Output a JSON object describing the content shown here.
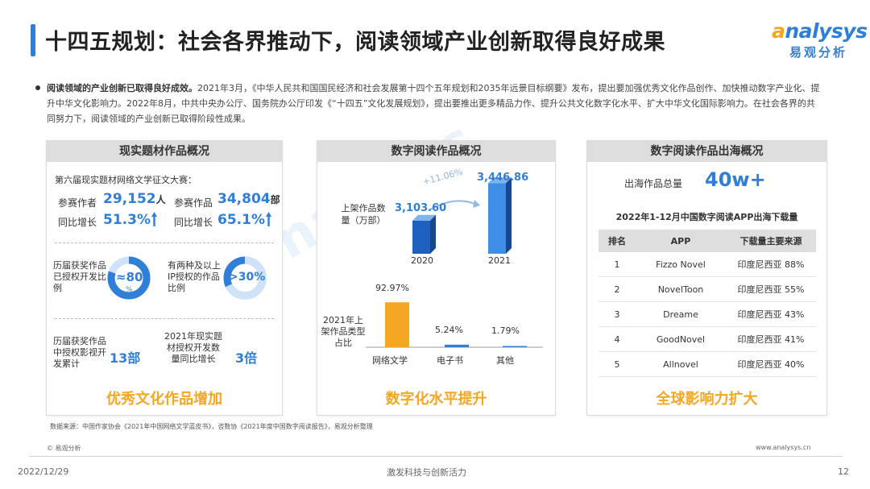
{
  "header": {
    "title": "十四五规划：社会各界推动下，阅读领域产业创新取得良好成果",
    "logo_en_prefix": "nalysys",
    "logo_cn": "易观分析"
  },
  "intro": {
    "lead": "阅读领域的产业创新已取得良好成效。",
    "body": "2021年3月，《中华人民共和国国民经济和社会发展第十四个五年规划和2035年远景目标纲要》发布，提出要加强优秀文化作品创作、加快推动数字产业化、提升中华文化影响力。2022年8月，中共中央办公厅、国务院办公厅印发《“十四五”文化发展规划》，提出要推出更多精品力作、提升公共文化数字化水平、扩大中华文化国际影响力。在社会各界的共同努力下，阅读领域的产业创新已取得阶段性成果。"
  },
  "panel1": {
    "header": "现实题材作品概况",
    "contest": "第六届现实题材网络文学征文大赛：",
    "authors_label": "参赛作者",
    "authors_value": "29,152",
    "authors_unit": "人",
    "works_label": "参赛作品",
    "works_value": "34,804",
    "works_unit": "部",
    "yoy_label_1": "同比增长",
    "yoy_value_1": "51.3%",
    "yoy_label_2": "同比增长",
    "yoy_value_2": "65.1%",
    "ring1_label": "历届获奖作品已授权开发比例",
    "ring1_value": "≈80",
    "ring1_unit": "%",
    "ring1_fraction": 0.8,
    "ring2_label": "有两种及以上IP授权的作品比例",
    "ring2_value": ">30%",
    "ring2_fraction": 0.32,
    "stat1_label": "历届获奖作品中授权影视开发累计",
    "stat1_value": "13部",
    "stat2_label": "2021年现实题材授权开发数量同比增长",
    "stat2_value": "3倍",
    "footer": "优秀文化作品增加"
  },
  "panel2": {
    "header": "数字阅读作品概况",
    "y_label": "上架作品数量（万部）",
    "growth": "+11.06%",
    "bars": [
      {
        "year": "2020",
        "value": 3103.6,
        "label": "3,103.60"
      },
      {
        "year": "2021",
        "value": 3446.86,
        "label": "3,446.86"
      }
    ],
    "share_label": "2021年上架作品类型占比",
    "shares": [
      {
        "name": "网络文学",
        "pct": "92.97%",
        "value": 92.97
      },
      {
        "name": "电子书",
        "pct": "5.24%",
        "value": 5.24
      },
      {
        "name": "其他",
        "pct": "1.79%",
        "value": 1.79
      }
    ],
    "footer": "数字化水平提升"
  },
  "panel3": {
    "header": "数字阅读作品出海概况",
    "total_label": "出海作品总量",
    "total_value": "40w+",
    "table_title": "2022年1-12月中国数字阅读APP出海下载量",
    "columns": [
      "排名",
      "APP",
      "下载量主要来源"
    ],
    "rows": [
      [
        "1",
        "Fizzo Novel",
        "印度尼西亚 88%"
      ],
      [
        "2",
        "NovelToon",
        "印度尼西亚 55%"
      ],
      [
        "3",
        "Dreame",
        "印度尼西亚 43%"
      ],
      [
        "4",
        "GoodNovel",
        "印度尼西亚 41%"
      ],
      [
        "5",
        "Allnovel",
        "印度尼西亚 40%"
      ]
    ],
    "footer": "全球影响力扩大"
  },
  "footer": {
    "source": "数据来源：中国作家协会《2021年中国网络文学蓝皮书》，咨数协《2021年度中国数字阅读报告》，易观分析整理",
    "copyright": "© 易观分析",
    "website": "www.analysys.cn",
    "date": "2022/12/29",
    "slogan": "激发科技与创新活力",
    "page": "12"
  },
  "watermark": {
    "line1": "nalysys",
    "line2": "易观分析"
  },
  "colors": {
    "brand_blue": "#2f7fd8",
    "brand_orange": "#f5a623",
    "panel_header": "#dedede"
  }
}
